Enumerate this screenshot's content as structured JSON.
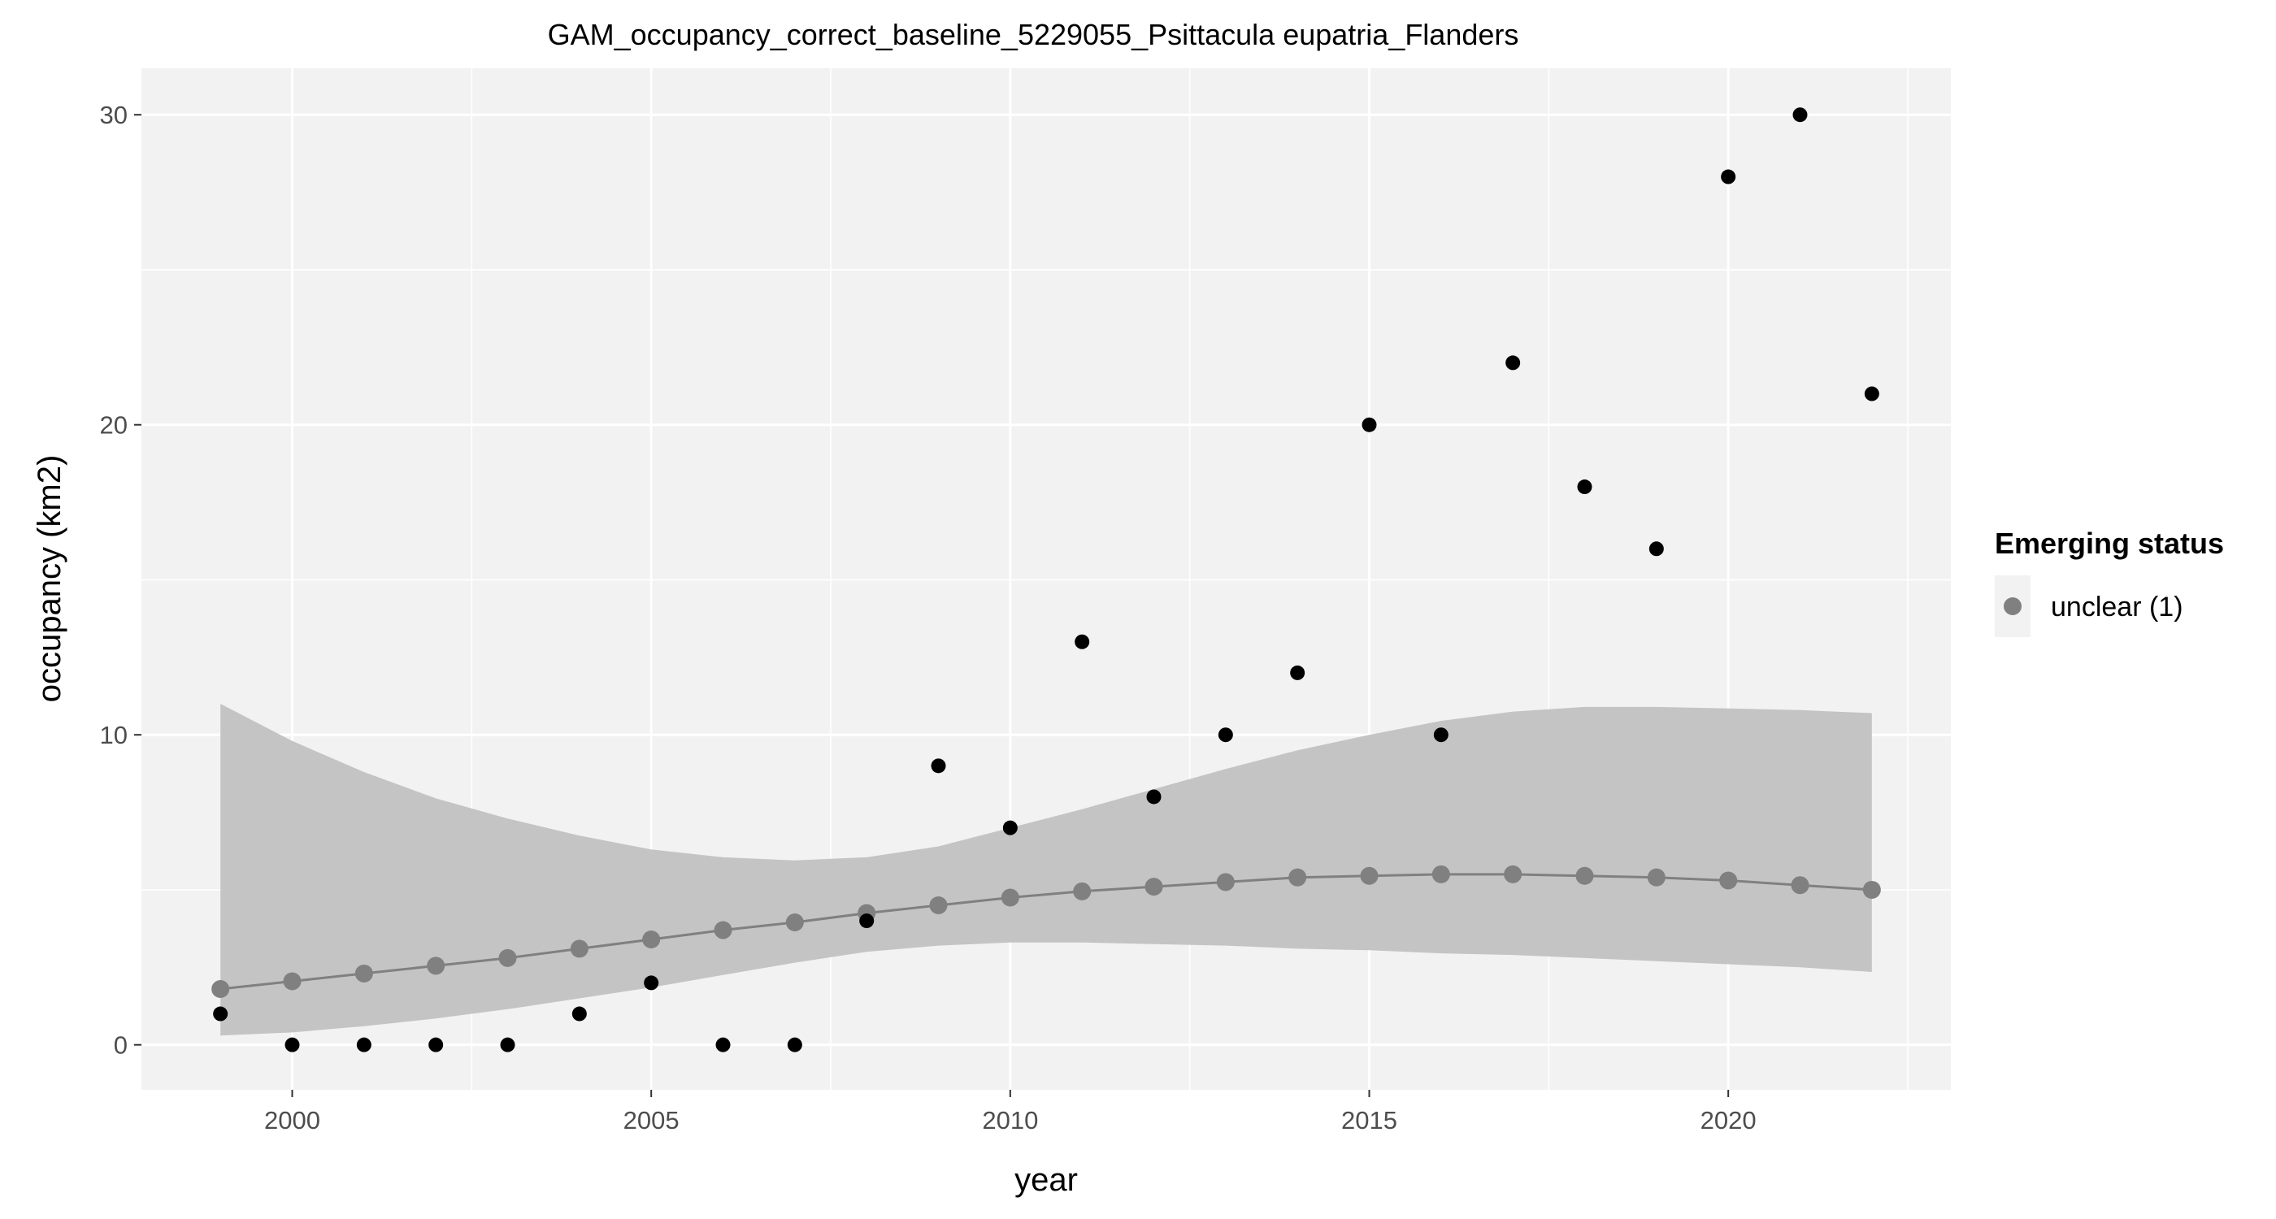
{
  "chart_data": {
    "type": "scatter",
    "title": "GAM_occupancy_correct_baseline_5229055_Psittacula eupatria_Flanders",
    "xlabel": "year",
    "ylabel": "occupancy (km2)",
    "xlim": [
      1997.9,
      2023.1
    ],
    "ylim": [
      -1.45,
      31.5
    ],
    "x_ticks": [
      2000,
      2005,
      2010,
      2015,
      2020
    ],
    "y_ticks": [
      0,
      10,
      20,
      30
    ],
    "grid": true,
    "legend": {
      "title": "Emerging status",
      "position": "right",
      "entries": [
        {
          "label": "unclear (1)",
          "color": "#808080"
        }
      ]
    },
    "observed": {
      "color": "#000000",
      "x": [
        1999,
        2000,
        2001,
        2002,
        2003,
        2004,
        2005,
        2006,
        2007,
        2008,
        2009,
        2010,
        2011,
        2012,
        2013,
        2014,
        2015,
        2016,
        2017,
        2018,
        2019,
        2020,
        2021,
        2022
      ],
      "y": [
        1,
        0,
        0,
        0,
        0,
        1,
        2,
        0,
        0,
        4,
        9,
        7,
        13,
        8,
        10,
        12,
        20,
        10,
        22,
        18,
        16,
        28,
        30,
        21
      ]
    },
    "fit": {
      "name": "unclear (1)",
      "color": "#808080",
      "x": [
        1999,
        2000,
        2001,
        2002,
        2003,
        2004,
        2005,
        2006,
        2007,
        2008,
        2009,
        2010,
        2011,
        2012,
        2013,
        2014,
        2015,
        2016,
        2017,
        2018,
        2019,
        2020,
        2021,
        2022
      ],
      "y": [
        1.8,
        2.05,
        2.3,
        2.55,
        2.8,
        3.1,
        3.4,
        3.7,
        3.95,
        4.25,
        4.5,
        4.75,
        4.95,
        5.1,
        5.25,
        5.4,
        5.45,
        5.5,
        5.5,
        5.45,
        5.4,
        5.3,
        5.15,
        5.0
      ],
      "ci_lower": [
        0.3,
        0.4,
        0.6,
        0.85,
        1.15,
        1.5,
        1.85,
        2.25,
        2.65,
        3.0,
        3.2,
        3.3,
        3.3,
        3.25,
        3.2,
        3.1,
        3.05,
        2.95,
        2.9,
        2.8,
        2.7,
        2.6,
        2.5,
        2.35
      ],
      "ci_upper": [
        11.0,
        9.8,
        8.8,
        7.95,
        7.3,
        6.75,
        6.3,
        6.05,
        5.95,
        6.05,
        6.4,
        7.0,
        7.6,
        8.25,
        8.9,
        9.5,
        10.0,
        10.45,
        10.75,
        10.9,
        10.9,
        10.85,
        10.8,
        10.7
      ]
    }
  }
}
